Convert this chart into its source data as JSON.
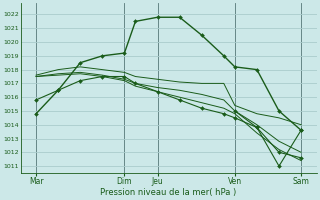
{
  "bg_color": "#cce8e8",
  "grid_color": "#aacccc",
  "line_color": "#1a5c1a",
  "xlabel": "Pression niveau de la mer( hPa )",
  "ylabel_ticks": [
    1011,
    1012,
    1013,
    1014,
    1015,
    1016,
    1017,
    1018,
    1019,
    1020,
    1021,
    1022
  ],
  "ylim": [
    1010.5,
    1022.8
  ],
  "xlim": [
    -0.2,
    13.2
  ],
  "xtick_labels": [
    "Mar",
    "Dim",
    "Jeu",
    "Ven",
    "Sam"
  ],
  "xtick_positions": [
    0.5,
    4.5,
    6.0,
    9.5,
    12.5
  ],
  "vline_positions": [
    0.5,
    4.5,
    6.0,
    9.5,
    12.5
  ],
  "line1_x": [
    0.5,
    1.5,
    2.5,
    3.5,
    4.5,
    5.0,
    6.0,
    7.0,
    8.0,
    9.0,
    9.5,
    10.5,
    11.5,
    12.5
  ],
  "line1_y": [
    1014.8,
    1016.5,
    1018.5,
    1019.0,
    1019.2,
    1021.5,
    1021.8,
    1021.8,
    1020.5,
    1019.0,
    1018.2,
    1018.0,
    1015.0,
    1013.6
  ],
  "line2_x": [
    0.5,
    1.5,
    2.5,
    3.5,
    4.5,
    5.0,
    6.0,
    7.0,
    8.0,
    9.0,
    9.5,
    10.5,
    11.5,
    12.5
  ],
  "line2_y": [
    1017.6,
    1018.0,
    1018.2,
    1018.0,
    1017.8,
    1017.5,
    1017.3,
    1017.1,
    1017.0,
    1017.0,
    1015.4,
    1014.8,
    1014.5,
    1014.0
  ],
  "line3_x": [
    0.5,
    1.5,
    2.5,
    3.5,
    4.5,
    5.0,
    6.0,
    7.0,
    8.0,
    9.0,
    9.5,
    10.5,
    11.5,
    12.5
  ],
  "line3_y": [
    1017.5,
    1017.7,
    1017.8,
    1017.6,
    1017.3,
    1017.0,
    1016.7,
    1016.5,
    1016.2,
    1015.8,
    1015.0,
    1014.0,
    1012.8,
    1012.0
  ],
  "line4_x": [
    0.5,
    1.5,
    2.5,
    3.5,
    4.5,
    5.0,
    6.0,
    7.0,
    8.0,
    9.0,
    9.5,
    10.5,
    11.5,
    12.5
  ],
  "line4_y": [
    1017.5,
    1017.6,
    1017.7,
    1017.5,
    1017.2,
    1016.8,
    1016.4,
    1016.0,
    1015.6,
    1015.2,
    1014.8,
    1013.4,
    1012.2,
    1011.4
  ],
  "line5_x": [
    0.5,
    1.5,
    2.5,
    3.5,
    4.5,
    5.0,
    6.0,
    7.0,
    8.0,
    9.0,
    9.5,
    10.5,
    11.5,
    12.5
  ],
  "line5_y": [
    1015.8,
    1016.5,
    1017.2,
    1017.5,
    1017.5,
    1017.0,
    1016.4,
    1015.8,
    1015.2,
    1014.8,
    1014.5,
    1013.8,
    1012.0,
    1011.6
  ],
  "line6_x": [
    9.5,
    10.5,
    11.5,
    12.5
  ],
  "line6_y": [
    1015.0,
    1013.8,
    1011.0,
    1013.6
  ]
}
